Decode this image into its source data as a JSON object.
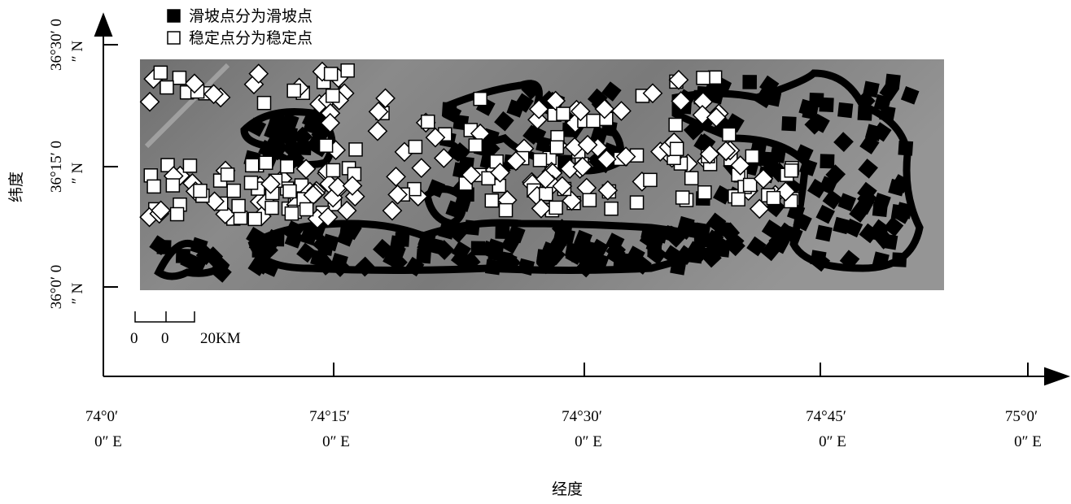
{
  "legend": [
    {
      "label": "滑坡点分为滑坡点",
      "color": "#000000"
    },
    {
      "label": "稳定点分为稳定点",
      "color": "#ffffff"
    }
  ],
  "axes": {
    "x_label": "经度",
    "y_label": "纬度",
    "x_ticks": [
      [
        "74°0′",
        "0″ E"
      ],
      [
        "74°15′",
        "0″ E"
      ],
      [
        "74°30′",
        "0″ E"
      ],
      [
        "74°45′",
        "0″ E"
      ],
      [
        "75°0′",
        "0″ E"
      ]
    ],
    "y_ticks": [
      [
        "36°30′ 0",
        "″ N"
      ],
      [
        "36°15′ 0",
        "″ N"
      ],
      [
        "36°0′ 0",
        "″ N"
      ]
    ]
  },
  "scale_bar": {
    "labels": [
      "0",
      "0",
      "20KM"
    ]
  }
}
